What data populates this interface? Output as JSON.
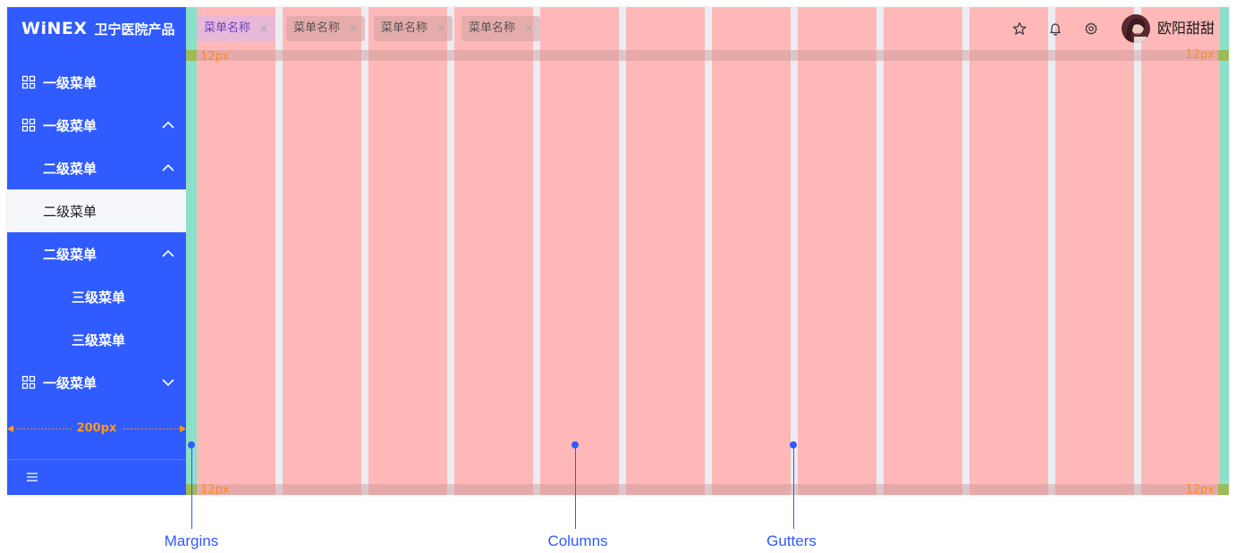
{
  "brand": {
    "logo": "WiNEX",
    "name": "卫宁医院产品"
  },
  "sidebar": {
    "items": [
      {
        "label": "一级菜单",
        "level": 1,
        "icon": "grid-icon"
      },
      {
        "label": "一级菜单",
        "level": 1,
        "icon": "grid-icon",
        "expanded": true
      },
      {
        "label": "二级菜单",
        "level": 2,
        "expanded": true
      },
      {
        "label": "二级菜单",
        "level": 2,
        "selected": true
      },
      {
        "label": "二级菜单",
        "level": 2,
        "expanded": true
      },
      {
        "label": "三级菜单",
        "level": 3
      },
      {
        "label": "三级菜单",
        "level": 3
      },
      {
        "label": "一级菜单",
        "level": 1,
        "icon": "grid-icon",
        "expanded": false
      }
    ],
    "width_label": "200px",
    "collapse_icon": "hamburger-icon"
  },
  "header": {
    "tabs": [
      {
        "label": "菜单名称",
        "active": true
      },
      {
        "label": "菜单名称",
        "active": false
      },
      {
        "label": "菜单名称",
        "active": false
      },
      {
        "label": "菜单名称",
        "active": false
      }
    ],
    "tab_close_glyph": "×",
    "icons": [
      "star-icon",
      "bell-icon",
      "gear-icon"
    ],
    "user": {
      "name": "欧阳甜甜",
      "avatar": "avatar"
    }
  },
  "grid": {
    "columns": 12,
    "margin_label": "12px"
  },
  "annotations": {
    "margins": "Margins",
    "columns": "Columns",
    "gutters": "Gutters"
  },
  "colors": {
    "primary": "#2f5bff",
    "column": "#ffb8b8",
    "margin": "#8ce0c8",
    "measure": "#ff9a1a"
  }
}
